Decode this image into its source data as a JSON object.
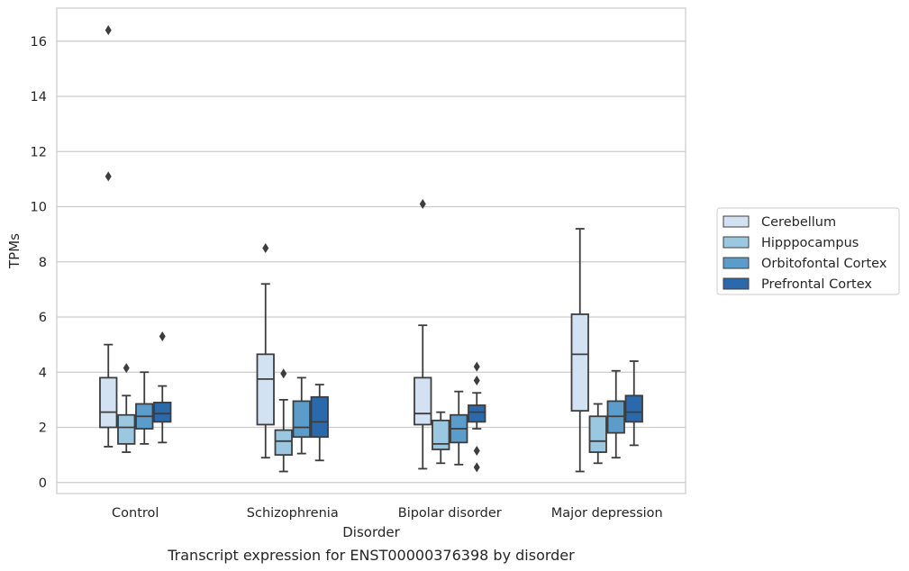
{
  "caption": "Transcript expression for ENST00000376398 by disorder",
  "chart_data": {
    "type": "boxplot",
    "xlabel": "Disorder",
    "ylabel": "TPMs",
    "ylim": [
      -0.4,
      17.2
    ],
    "yticks": [
      0,
      2,
      4,
      6,
      8,
      10,
      12,
      14,
      16
    ],
    "categories": [
      "Control",
      "Schizophrenia",
      "Bipolar disorder",
      "Major depression"
    ],
    "grid": "horizontal",
    "legend_position": "right",
    "series": [
      {
        "name": "Cerebellum",
        "color": "#d3e2f2",
        "boxes": [
          {
            "whisker_low": 1.3,
            "q1": 2.0,
            "median": 2.55,
            "q3": 3.8,
            "whisker_high": 5.0,
            "outliers": [
              11.1,
              16.4
            ]
          },
          {
            "whisker_low": 0.9,
            "q1": 2.1,
            "median": 3.75,
            "q3": 4.65,
            "whisker_high": 7.2,
            "outliers": [
              8.5
            ]
          },
          {
            "whisker_low": 0.5,
            "q1": 2.1,
            "median": 2.5,
            "q3": 3.8,
            "whisker_high": 5.7,
            "outliers": [
              10.1
            ]
          },
          {
            "whisker_low": 0.4,
            "q1": 2.6,
            "median": 4.65,
            "q3": 6.1,
            "whisker_high": 9.2,
            "outliers": []
          }
        ]
      },
      {
        "name": "Hipppocampus",
        "color": "#9ac8e0",
        "boxes": [
          {
            "whisker_low": 1.1,
            "q1": 1.4,
            "median": 2.0,
            "q3": 2.45,
            "whisker_high": 3.15,
            "outliers": [
              4.15
            ]
          },
          {
            "whisker_low": 0.4,
            "q1": 1.0,
            "median": 1.5,
            "q3": 1.9,
            "whisker_high": 3.0,
            "outliers": [
              3.95
            ]
          },
          {
            "whisker_low": 0.7,
            "q1": 1.2,
            "median": 1.4,
            "q3": 2.25,
            "whisker_high": 2.55,
            "outliers": []
          },
          {
            "whisker_low": 0.7,
            "q1": 1.1,
            "median": 1.5,
            "q3": 2.4,
            "whisker_high": 2.85,
            "outliers": []
          }
        ]
      },
      {
        "name": "Orbitofontal Cortex",
        "color": "#5a9dcb",
        "boxes": [
          {
            "whisker_low": 1.4,
            "q1": 1.95,
            "median": 2.4,
            "q3": 2.85,
            "whisker_high": 4.0,
            "outliers": []
          },
          {
            "whisker_low": 1.05,
            "q1": 1.65,
            "median": 2.0,
            "q3": 2.95,
            "whisker_high": 3.8,
            "outliers": []
          },
          {
            "whisker_low": 0.65,
            "q1": 1.45,
            "median": 1.95,
            "q3": 2.45,
            "whisker_high": 3.3,
            "outliers": []
          },
          {
            "whisker_low": 0.9,
            "q1": 1.8,
            "median": 2.4,
            "q3": 2.95,
            "whisker_high": 4.05,
            "outliers": []
          }
        ]
      },
      {
        "name": "Prefrontal Cortex",
        "color": "#2a69ac",
        "boxes": [
          {
            "whisker_low": 1.45,
            "q1": 2.2,
            "median": 2.5,
            "q3": 2.9,
            "whisker_high": 3.5,
            "outliers": [
              5.3
            ]
          },
          {
            "whisker_low": 0.8,
            "q1": 1.65,
            "median": 2.2,
            "q3": 3.1,
            "whisker_high": 3.55,
            "outliers": []
          },
          {
            "whisker_low": 1.95,
            "q1": 2.2,
            "median": 2.55,
            "q3": 2.8,
            "whisker_high": 3.25,
            "outliers": [
              0.55,
              1.15,
              3.7,
              4.2
            ]
          },
          {
            "whisker_low": 1.35,
            "q1": 2.2,
            "median": 2.55,
            "q3": 3.15,
            "whisker_high": 4.4,
            "outliers": []
          }
        ]
      }
    ]
  }
}
